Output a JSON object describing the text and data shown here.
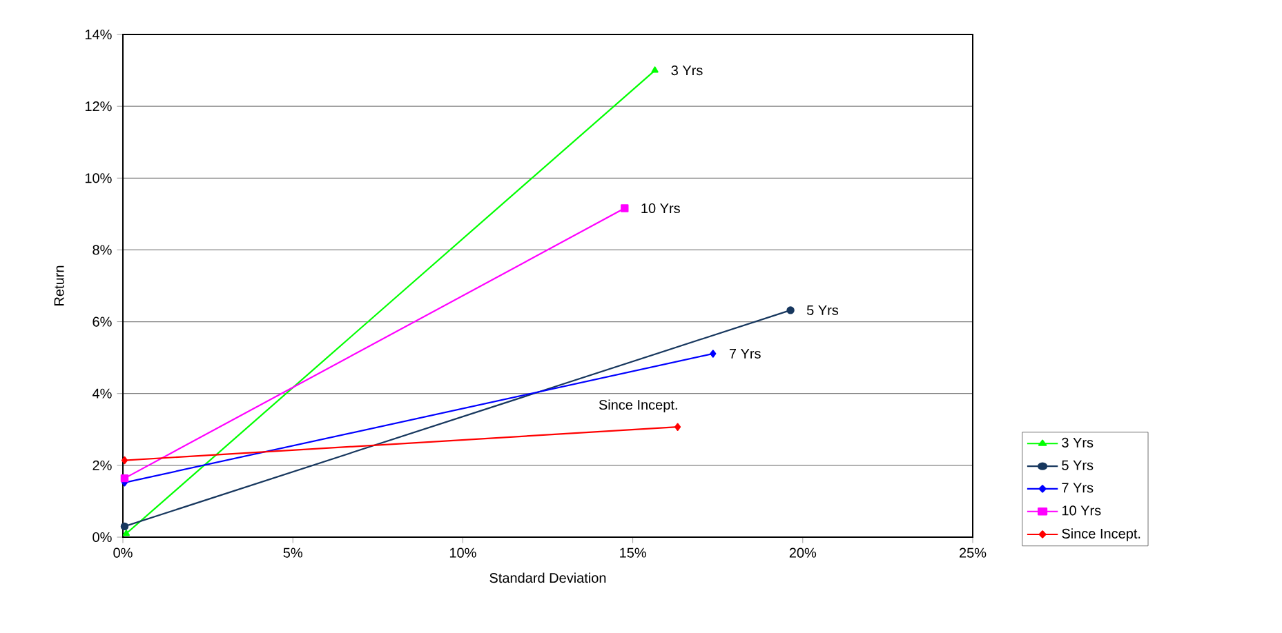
{
  "chart_data": {
    "type": "line",
    "xlabel": "Standard Deviation",
    "ylabel": "Return",
    "xlim": [
      0,
      25
    ],
    "ylim": [
      0,
      14
    ],
    "xticks": [
      {
        "value": 0,
        "label": "0%"
      },
      {
        "value": 5,
        "label": "5%"
      },
      {
        "value": 10,
        "label": "10%"
      },
      {
        "value": 15,
        "label": "15%"
      },
      {
        "value": 20,
        "label": "20%"
      },
      {
        "value": 25,
        "label": "25%"
      }
    ],
    "yticks": [
      {
        "value": 0,
        "label": "0%"
      },
      {
        "value": 2,
        "label": "2%"
      },
      {
        "value": 4,
        "label": "4%"
      },
      {
        "value": 6,
        "label": "6%"
      },
      {
        "value": 8,
        "label": "8%"
      },
      {
        "value": 10,
        "label": "10%"
      },
      {
        "value": 12,
        "label": "12%"
      },
      {
        "value": 14,
        "label": "14%"
      }
    ],
    "grid": "y",
    "legend": "right",
    "series": [
      {
        "name": "3 Yrs",
        "color": "#00ff00",
        "marker": "triangle",
        "x": [
          0.1,
          15.65
        ],
        "values": [
          0.1,
          13.0
        ]
      },
      {
        "name": "5 Yrs",
        "color": "#17375e",
        "marker": "circle",
        "x": [
          0.05,
          19.64
        ],
        "values": [
          0.3,
          6.32
        ]
      },
      {
        "name": "7 Yrs",
        "color": "#0000ff",
        "marker": "diamond",
        "x": [
          0.05,
          17.36
        ],
        "values": [
          1.52,
          5.11
        ]
      },
      {
        "name": "10 Yrs",
        "color": "#ff00ff",
        "marker": "square",
        "x": [
          0.05,
          14.76
        ],
        "values": [
          1.64,
          9.16
        ]
      },
      {
        "name": "Since Incept.",
        "color": "#ff0000",
        "marker": "diamond",
        "x": [
          0.05,
          16.32
        ],
        "values": [
          2.14,
          3.07
        ]
      }
    ],
    "annotations": [
      {
        "text": "3 Yrs",
        "x": 15.65,
        "y": 13.0
      },
      {
        "text": "10 Yrs",
        "x": 14.76,
        "y": 9.16
      },
      {
        "text": "5 Yrs",
        "x": 19.64,
        "y": 6.32
      },
      {
        "text": "7 Yrs",
        "x": 17.36,
        "y": 5.11
      },
      {
        "text": "Since Incept.",
        "x": 16.32,
        "y": 3.07
      }
    ]
  }
}
